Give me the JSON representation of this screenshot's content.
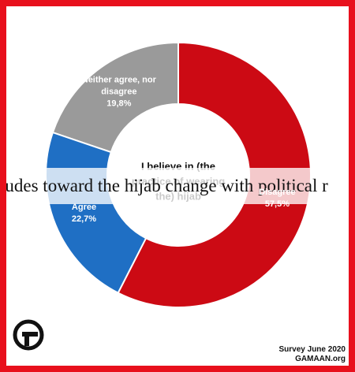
{
  "chart_data": {
    "type": "pie",
    "donut": true,
    "center_label": "I believe in (the practice of wearing the) hijab",
    "categories": [
      "Disagree",
      "Agree",
      "Neither agree, nor disagree"
    ],
    "values": [
      57.5,
      22.7,
      19.8
    ],
    "value_labels": [
      "57,5%",
      "22,7%",
      "19,8%"
    ],
    "colors": [
      "#cc0a14",
      "#1f6fc4",
      "#9a9a9a"
    ],
    "source": [
      "Survey June 2020",
      "GAMAAN.org"
    ]
  },
  "banner": "tudes toward the hijab change with political r"
}
